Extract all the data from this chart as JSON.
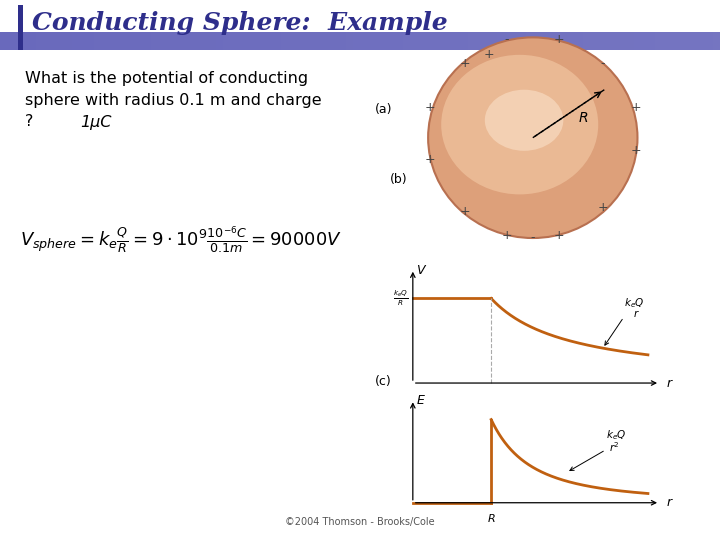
{
  "title": "Conducting Sphere:  Example",
  "title_color": "#2E2E8B",
  "title_bar_color": "#3A3A9B",
  "bg_color": "#FFFFFF",
  "question_line1": "What is the potential of conducting",
  "question_line2": "sphere with radius 0.1 m and charge",
  "question_line3": "?             1μC",
  "label_a": "(a)",
  "label_b": "(b)",
  "label_c": "(c)",
  "sphere_color_outer": "#DDA07A",
  "sphere_color_inner": "#F0C4A0",
  "sphere_edge_color": "#B87050",
  "curve_color": "#C06010",
  "charge_plus_color": "#555555",
  "charge_minus_color": "#555555",
  "footer": "©2004 Thomson - Brooks/Cole",
  "header_line_color": "#6666BB"
}
